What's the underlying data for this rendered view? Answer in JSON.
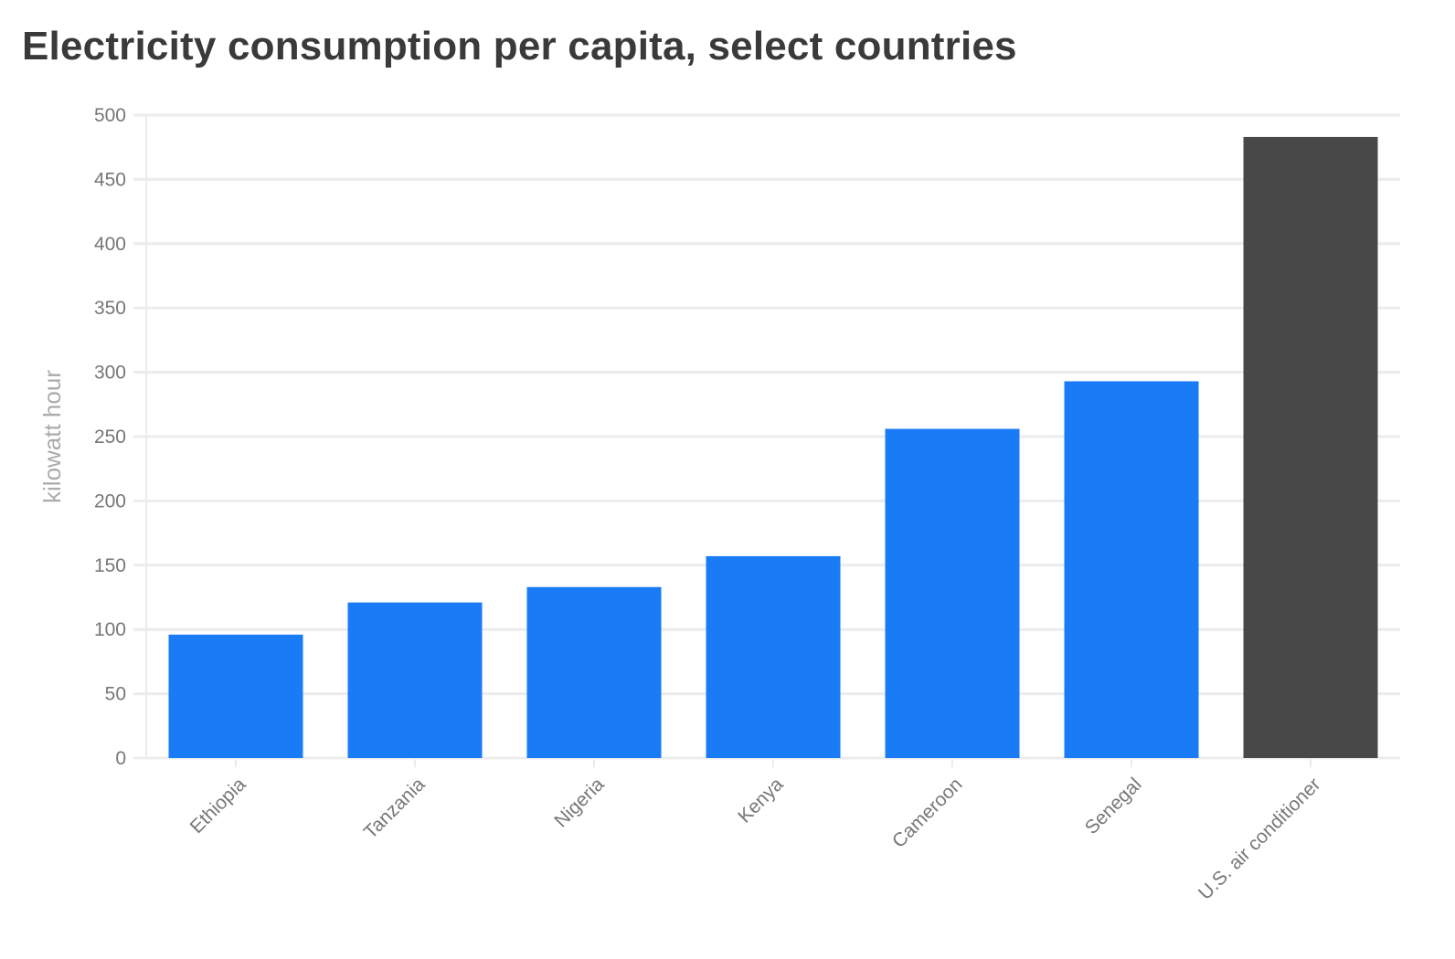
{
  "chart_data": {
    "type": "bar",
    "title": "Electricity consumption per capita, select countries",
    "xlabel": "",
    "ylabel": "kilowatt hour",
    "categories": [
      "Ethiopia",
      "Tanzania",
      "Nigeria",
      "Kenya",
      "Cameroon",
      "Senegal",
      "U.S. air conditioner"
    ],
    "values": [
      96,
      121,
      133,
      157,
      256,
      293,
      483
    ],
    "ylim": [
      0,
      500
    ],
    "yticks": [
      0,
      50,
      100,
      150,
      200,
      250,
      300,
      350,
      400,
      450,
      500
    ],
    "grid": true,
    "colors": {
      "country": "#1a7bf7",
      "highlight": "#484848",
      "grid": "#ececec",
      "tick_text": "#777777"
    },
    "bar_colors": [
      "#1a7bf7",
      "#1a7bf7",
      "#1a7bf7",
      "#1a7bf7",
      "#1a7bf7",
      "#1a7bf7",
      "#484848"
    ]
  }
}
